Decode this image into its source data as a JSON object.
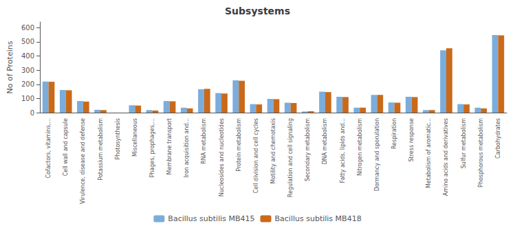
{
  "chart_data": {
    "type": "bar",
    "title": "Subsystems",
    "ylabel": "No of Proteins",
    "categories": [
      "Cofactors, vitamins,...",
      "Cell wall and capsule",
      "Virulence, disease and defense",
      "Potassium metabolism",
      "Photosynthesis",
      "Miscellaneous",
      "Phages, prophages,...",
      "Membrane transport",
      "Iron acquisition and...",
      "RNA metabolism",
      "Nucleosides and nucleotides",
      "Protein metabolism",
      "Cell division and cell cycles",
      "Motility and chemotaxis",
      "Regulation and cell signaling",
      "Secondary metabolism",
      "DNA metabolism",
      "Fatty acids, lipids and...",
      "Nitrogen metabolism",
      "Dormancy and sporulation",
      "Respiration",
      "Stress response",
      "Metabolism of aromatic...",
      "Amino acids and derivatives",
      "Sulfur metabolism",
      "Phosphorous metabolism",
      "Carbohydrates"
    ],
    "series": [
      {
        "name": "Bacillus subtilis MB415",
        "color": "#7aaddc",
        "values": [
          220,
          160,
          82,
          20,
          0,
          52,
          18,
          82,
          35,
          165,
          138,
          228,
          60,
          97,
          70,
          8,
          148,
          112,
          35,
          125,
          72,
          112,
          18,
          440,
          60,
          35,
          548
        ]
      },
      {
        "name": "Bacillus subtilis MB418",
        "color": "#c96a1a",
        "values": [
          218,
          158,
          78,
          18,
          0,
          50,
          15,
          80,
          30,
          168,
          135,
          225,
          58,
          95,
          68,
          10,
          145,
          110,
          35,
          125,
          70,
          110,
          18,
          455,
          58,
          30,
          545
        ]
      }
    ],
    "ylim": [
      0,
      640
    ],
    "yticks": [
      0,
      100,
      200,
      300,
      400,
      500,
      600
    ],
    "grid": false,
    "legend": "bottom"
  }
}
